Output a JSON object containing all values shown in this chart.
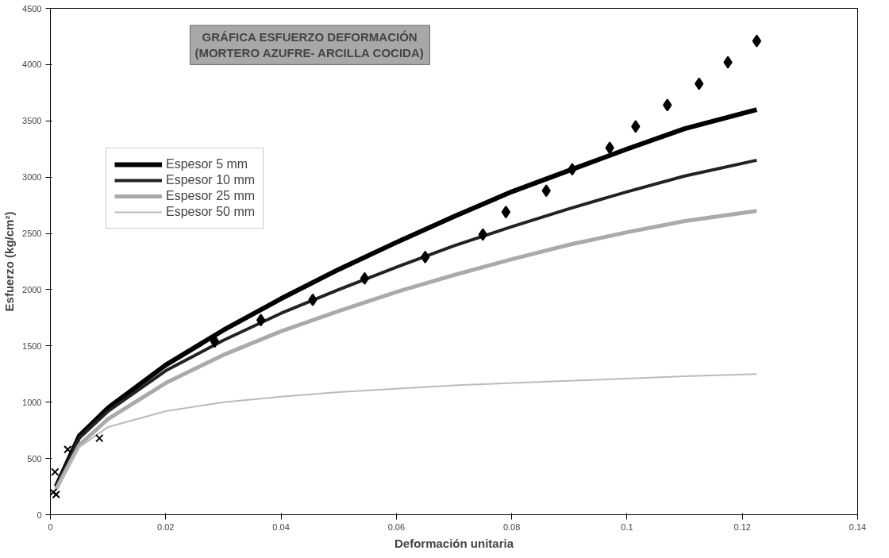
{
  "chart_data": {
    "type": "line",
    "title": "GRÁFICA ESFUERZO DEFORMACIÓN\n(MORTERO AZUFRE- ARCILLA COCIDA)",
    "xlabel": "Deformación unitaria",
    "ylabel": "Esfuerzo (kg/cm²)",
    "xlim": [
      0,
      0.14
    ],
    "ylim": [
      0,
      4500
    ],
    "xticks": [
      0,
      0.02,
      0.04,
      0.06,
      0.08,
      0.1,
      0.12,
      0.14
    ],
    "yticks": [
      0,
      500,
      1000,
      1500,
      2000,
      2500,
      3000,
      3500,
      4000,
      4500
    ],
    "grid": false,
    "legend": "top left",
    "marker": "none",
    "line_style": "solid",
    "x": [
      0.001,
      0.005,
      0.01,
      0.02,
      0.03,
      0.04,
      0.05,
      0.06,
      0.07,
      0.08,
      0.09,
      0.1,
      0.11,
      0.1225
    ],
    "series": [
      {
        "name": "Espesor 5 mm",
        "color": "#000000",
        "values": [
          250,
          700,
          950,
          1330,
          1640,
          1920,
          2180,
          2420,
          2650,
          2870,
          3060,
          3250,
          3430,
          3600
        ]
      },
      {
        "name": "Espesor 10 mm",
        "color": "#222222",
        "values": [
          250,
          680,
          920,
          1280,
          1550,
          1790,
          2000,
          2200,
          2390,
          2560,
          2720,
          2870,
          3010,
          3150
        ]
      },
      {
        "name": "Espesor 25 mm",
        "color": "#aaaaaa",
        "values": [
          230,
          620,
          850,
          1170,
          1420,
          1630,
          1810,
          1980,
          2130,
          2270,
          2400,
          2510,
          2610,
          2700
        ]
      },
      {
        "name": "Espesor 50 mm",
        "color": "#bbbbbb",
        "values": [
          230,
          600,
          780,
          920,
          1000,
          1050,
          1090,
          1120,
          1150,
          1170,
          1190,
          1210,
          1230,
          1250
        ]
      },
      {
        "type": "scatter",
        "marker": "diamond",
        "color": "#000000",
        "x": [
          0.0285,
          0.0365,
          0.0455,
          0.0545,
          0.065,
          0.075,
          0.079,
          0.086,
          0.0905,
          0.097,
          0.1015,
          0.107,
          0.1125,
          0.1175,
          0.1225
        ],
        "values": [
          1540,
          1730,
          1910,
          2100,
          2290,
          2490,
          2690,
          2880,
          3070,
          3260,
          3450,
          3640,
          3830,
          4020,
          4210
        ]
      },
      {
        "type": "scatter",
        "marker": "cross",
        "color": "#000000",
        "x": [
          0.0005,
          0.0008,
          0.001,
          0.003,
          0.0085
        ],
        "values": [
          200,
          380,
          180,
          580,
          680
        ]
      }
    ]
  }
}
